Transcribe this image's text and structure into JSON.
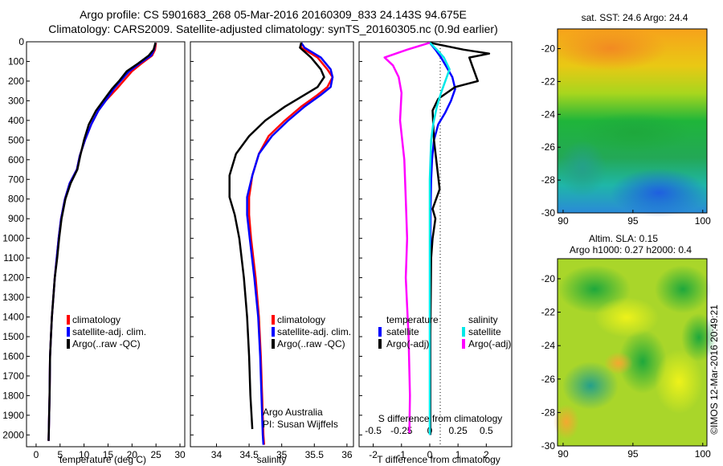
{
  "title": {
    "line1": "Argo profile: CS 5901683_268 05-Mar-2016 20160309_833 24.143S 94.675E",
    "line2": "Climatology: CARS2009. Satellite-adjusted climatology: synTS_20160305.nc (0.9d earlier)"
  },
  "colors": {
    "climatology": "#ff0000",
    "satellite": "#0000ff",
    "argo": "#000000",
    "satellite_s": "#00e8e8",
    "argo_s": "#ff00ff"
  },
  "chart_data": [
    {
      "type": "line",
      "id": "temperature",
      "xlabel": "temperature (deg C)",
      "ylabel": "",
      "xlim": [
        -2,
        31
      ],
      "ylim": [
        2060,
        0
      ],
      "xticks": [
        "0",
        "5",
        "10",
        "15",
        "20",
        "25",
        "30"
      ],
      "yticks": [
        "0",
        "100",
        "200",
        "300",
        "400",
        "500",
        "600",
        "700",
        "800",
        "900",
        "1000",
        "1100",
        "1200",
        "1300",
        "1400",
        "1500",
        "1600",
        "1700",
        "1800",
        "1900",
        "2000"
      ],
      "legend": [
        "climatology",
        "satellite-adj. clim.",
        "Argo(..raw -QC)"
      ],
      "series": [
        {
          "name": "climatology",
          "x": [
            25,
            24.8,
            24.2,
            22,
            20,
            18.2,
            16.8,
            14.5,
            13,
            11.5,
            10.2,
            9.1,
            8.5,
            7,
            6,
            5.2,
            4.7,
            4.3,
            3.9,
            3.6,
            3.3,
            3.1,
            2.9,
            2.8,
            2.6
          ],
          "y": [
            5,
            40,
            70,
            110,
            150,
            200,
            240,
            300,
            350,
            420,
            500,
            580,
            650,
            720,
            800,
            900,
            1000,
            1100,
            1200,
            1300,
            1400,
            1500,
            1600,
            1800,
            2030
          ]
        },
        {
          "name": "satellite-adj. clim.",
          "x": [
            24.9,
            24.6,
            24,
            21.6,
            19.4,
            17.6,
            16.2,
            14.5,
            13,
            11.5,
            10.2,
            9.1,
            8.5,
            7,
            6,
            5.2,
            4.7,
            4.3,
            3.9,
            3.6,
            3.3,
            3.1,
            2.9,
            2.8,
            2.6
          ],
          "y": [
            5,
            40,
            70,
            110,
            150,
            200,
            240,
            300,
            350,
            420,
            500,
            580,
            650,
            720,
            800,
            900,
            1000,
            1100,
            1200,
            1300,
            1400,
            1500,
            1600,
            1800,
            2030
          ]
        },
        {
          "name": "Argo(..raw -QC)",
          "x": [
            24.9,
            24.5,
            23.5,
            21.3,
            18.9,
            17.3,
            15.8,
            14,
            12.5,
            11,
            10,
            9.2,
            8.6,
            7.2,
            6.1,
            5.3,
            4.8,
            4.4,
            3.9,
            3.6,
            3.3,
            3.1,
            2.9,
            2.8,
            2.6
          ],
          "y": [
            5,
            40,
            70,
            110,
            150,
            200,
            240,
            300,
            350,
            420,
            500,
            580,
            650,
            720,
            800,
            900,
            1000,
            1100,
            1200,
            1300,
            1400,
            1500,
            1600,
            1800,
            2030
          ]
        }
      ]
    },
    {
      "type": "line",
      "id": "salinity",
      "xlabel": "salinity",
      "xlim": [
        33.6,
        36.1
      ],
      "ylim": [
        2060,
        0
      ],
      "xticks": [
        "34",
        "34.5",
        "35",
        "35.5",
        "36"
      ],
      "legend": [
        "climatology",
        "satellite-adj. clim.",
        "Argo(..raw -QC)"
      ],
      "annotations": [
        "Argo Australia",
        "PI: Susan Wijffels"
      ],
      "series": [
        {
          "name": "climatology",
          "x": [
            35.3,
            35.3,
            35.55,
            35.7,
            35.78,
            35.7,
            35.55,
            35.3,
            35.05,
            34.8,
            34.65,
            34.55,
            34.5,
            34.5,
            34.53,
            34.6,
            34.65,
            34.68,
            34.7,
            34.72,
            34.73
          ],
          "y": [
            5,
            30,
            80,
            140,
            180,
            230,
            270,
            330,
            400,
            480,
            570,
            680,
            790,
            880,
            1000,
            1200,
            1400,
            1600,
            1800,
            2000,
            2050
          ]
        },
        {
          "name": "satellite-adj. clim.",
          "x": [
            35.3,
            35.35,
            35.6,
            35.75,
            35.78,
            35.75,
            35.6,
            35.35,
            35.1,
            34.85,
            34.65,
            34.55,
            34.47,
            34.47,
            34.51,
            34.58,
            34.64,
            34.67,
            34.69,
            34.71,
            34.72
          ],
          "y": [
            5,
            30,
            80,
            140,
            180,
            230,
            270,
            330,
            400,
            480,
            570,
            680,
            790,
            880,
            1000,
            1200,
            1400,
            1600,
            1800,
            2000,
            2050
          ]
        },
        {
          "name": "Argo(..raw -QC)",
          "x": [
            35.3,
            35.28,
            35.45,
            35.6,
            35.65,
            35.55,
            35.35,
            35.05,
            34.75,
            34.5,
            34.3,
            34.2,
            34.2,
            34.28,
            34.35,
            34.42,
            34.47,
            34.5,
            34.52,
            34.55
          ],
          "y": [
            5,
            30,
            80,
            140,
            180,
            230,
            270,
            330,
            400,
            480,
            570,
            680,
            790,
            880,
            1000,
            1200,
            1400,
            1600,
            1800,
            1970
          ]
        }
      ]
    },
    {
      "type": "line",
      "id": "difference",
      "xlabel": "T difference from climatology",
      "xlabel_top": "S difference from climatology",
      "xlim": [
        -2.5,
        2.9
      ],
      "ylim": [
        2060,
        0
      ],
      "xticks": [
        "-2",
        "-1",
        "0",
        "1",
        "2"
      ],
      "xticks_top": [
        "-0.5",
        "-0.25",
        "0",
        "0.25",
        "0.5"
      ],
      "legend_header_t": "temperature",
      "legend_header_s": "salinity",
      "legend": [
        "satellite",
        "Argo(-adj)",
        "satellite",
        "Argo(-adj)"
      ],
      "series": [
        {
          "name": "temperature satellite",
          "x": [
            0,
            0.2,
            0.4,
            0.6,
            0.8,
            0.9,
            0.75,
            0.55,
            0.3,
            0.15,
            0.08,
            0.05,
            0.03,
            0.02,
            0.02
          ],
          "y": [
            5,
            40,
            80,
            130,
            180,
            240,
            300,
            360,
            420,
            500,
            600,
            700,
            850,
            1200,
            2000
          ]
        },
        {
          "name": "temperature Argo(-adj)",
          "x": [
            0,
            1.2,
            2.1,
            1.4,
            1.5,
            1.7,
            0.9,
            0.6,
            0.3,
            0.1,
            0.15,
            0.35,
            0.1,
            0.2,
            0.1,
            0.05,
            0.02,
            0.02
          ],
          "y": [
            5,
            40,
            60,
            80,
            120,
            200,
            230,
            260,
            290,
            350,
            500,
            750,
            850,
            900,
            1000,
            1100,
            1500,
            2000
          ]
        },
        {
          "name": "salinity satellite",
          "x": [
            0,
            0.25,
            0.5,
            0.7,
            0.55,
            0.4,
            0.25,
            0.12,
            0.05,
            0,
            0,
            0
          ],
          "y": [
            5,
            40,
            80,
            140,
            200,
            260,
            330,
            420,
            500,
            700,
            1200,
            2000
          ]
        },
        {
          "name": "salinity Argo(-adj)",
          "x": [
            0,
            -0.8,
            -1.6,
            -1.3,
            -1.1,
            -1,
            -1.05,
            -0.9,
            -0.85,
            -0.8,
            -0.85,
            -0.75,
            -0.7,
            -0.72
          ],
          "y": [
            5,
            40,
            80,
            120,
            180,
            260,
            400,
            600,
            800,
            1000,
            1200,
            1500,
            1800,
            1990
          ]
        }
      ]
    },
    {
      "type": "heatmap",
      "id": "sst_map",
      "title": "sat. SST: 24.6 Argo: 24.4",
      "xlim": [
        89.6,
        100.3
      ],
      "ylim": [
        -30,
        -18.8
      ],
      "xticks": [
        "90",
        "95",
        "100"
      ],
      "yticks": [
        "-20",
        "-22",
        "-24",
        "-26",
        "-28",
        "-30"
      ]
    },
    {
      "type": "heatmap",
      "id": "sla_map",
      "title": "Altim. SLA: 0.15",
      "subtitle": "Argo h1000: 0.27 h2000: 0.4",
      "xlim": [
        89.6,
        100.3
      ],
      "ylim": [
        -30,
        -18.8
      ],
      "xticks": [
        "90",
        "95",
        "100"
      ],
      "yticks": [
        "-20",
        "-22",
        "-24",
        "-26",
        "-28",
        "-30"
      ]
    }
  ],
  "watermark": "©IMOS 12-Mar-2016 20:49:21"
}
